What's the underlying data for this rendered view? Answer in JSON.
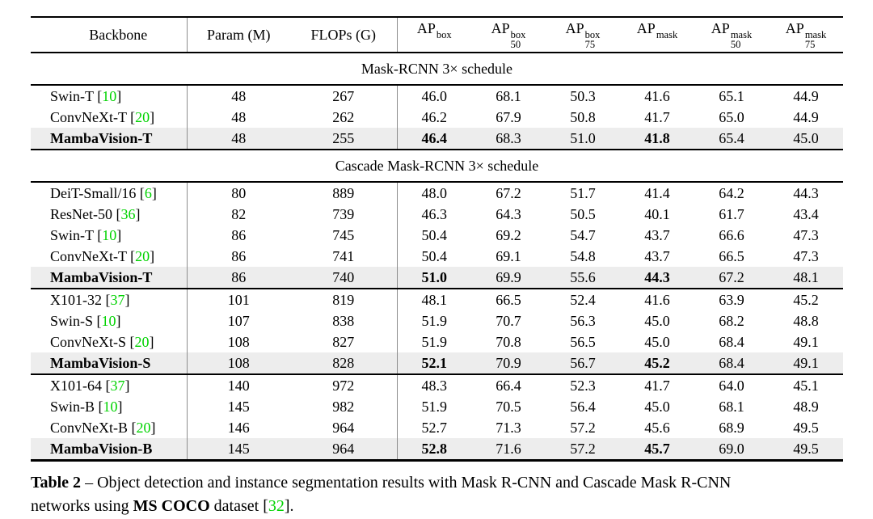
{
  "colors": {
    "citation_green": "#00d300",
    "highlight_row_bg": "#ededed",
    "rule_black": "#000000",
    "column_bar_gray": "#8c8c8c"
  },
  "table": {
    "columns": [
      {
        "label": "Backbone"
      },
      {
        "label": "Param (M)"
      },
      {
        "label": "FLOPs (G)"
      },
      {
        "base": "AP",
        "sup": "box",
        "sub": ""
      },
      {
        "base": "AP",
        "sup": "box",
        "sub": "50"
      },
      {
        "base": "AP",
        "sup": "box",
        "sub": "75"
      },
      {
        "base": "AP",
        "sup": "mask",
        "sub": ""
      },
      {
        "base": "AP",
        "sup": "mask",
        "sub": "50"
      },
      {
        "base": "AP",
        "sup": "mask",
        "sub": "75"
      }
    ],
    "sections": [
      {
        "title": "Mask-RCNN 3× schedule",
        "groups": [
          {
            "rows": [
              {
                "backbone": "Swin-T",
                "ref": "10",
                "highlight": false,
                "bold": [],
                "values": [
                  "48",
                  "267",
                  "46.0",
                  "68.1",
                  "50.3",
                  "41.6",
                  "65.1",
                  "44.9"
                ]
              },
              {
                "backbone": "ConvNeXt-T",
                "ref": "20",
                "highlight": false,
                "bold": [],
                "values": [
                  "48",
                  "262",
                  "46.2",
                  "67.9",
                  "50.8",
                  "41.7",
                  "65.0",
                  "44.9"
                ]
              },
              {
                "backbone": "MambaVision-T",
                "ref": null,
                "highlight": true,
                "bold": [
                  2,
                  5
                ],
                "values": [
                  "48",
                  "255",
                  "46.4",
                  "68.3",
                  "51.0",
                  "41.8",
                  "65.4",
                  "45.0"
                ]
              }
            ]
          }
        ]
      },
      {
        "title": "Cascade Mask-RCNN 3× schedule",
        "groups": [
          {
            "rows": [
              {
                "backbone": "DeiT-Small/16",
                "ref": "6",
                "highlight": false,
                "bold": [],
                "values": [
                  "80",
                  "889",
                  "48.0",
                  "67.2",
                  "51.7",
                  "41.4",
                  "64.2",
                  "44.3"
                ]
              },
              {
                "backbone": "ResNet-50",
                "ref": "36",
                "highlight": false,
                "bold": [],
                "values": [
                  "82",
                  "739",
                  "46.3",
                  "64.3",
                  "50.5",
                  "40.1",
                  "61.7",
                  "43.4"
                ]
              },
              {
                "backbone": "Swin-T",
                "ref": "10",
                "highlight": false,
                "bold": [],
                "values": [
                  "86",
                  "745",
                  "50.4",
                  "69.2",
                  "54.7",
                  "43.7",
                  "66.6",
                  "47.3"
                ]
              },
              {
                "backbone": "ConvNeXt-T",
                "ref": "20",
                "highlight": false,
                "bold": [],
                "values": [
                  "86",
                  "741",
                  "50.4",
                  "69.1",
                  "54.8",
                  "43.7",
                  "66.5",
                  "47.3"
                ]
              },
              {
                "backbone": "MambaVision-T",
                "ref": null,
                "highlight": true,
                "bold": [
                  2,
                  5
                ],
                "values": [
                  "86",
                  "740",
                  "51.0",
                  "69.9",
                  "55.6",
                  "44.3",
                  "67.2",
                  "48.1"
                ]
              }
            ]
          },
          {
            "rows": [
              {
                "backbone": "X101-32",
                "ref": "37",
                "highlight": false,
                "bold": [],
                "values": [
                  "101",
                  "819",
                  "48.1",
                  "66.5",
                  "52.4",
                  "41.6",
                  "63.9",
                  "45.2"
                ]
              },
              {
                "backbone": "Swin-S",
                "ref": "10",
                "highlight": false,
                "bold": [],
                "values": [
                  "107",
                  "838",
                  "51.9",
                  "70.7",
                  "56.3",
                  "45.0",
                  "68.2",
                  "48.8"
                ]
              },
              {
                "backbone": "ConvNeXt-S",
                "ref": "20",
                "highlight": false,
                "bold": [],
                "values": [
                  "108",
                  "827",
                  "51.9",
                  "70.8",
                  "56.5",
                  "45.0",
                  "68.4",
                  "49.1"
                ]
              },
              {
                "backbone": "MambaVision-S",
                "ref": null,
                "highlight": true,
                "bold": [
                  2,
                  5
                ],
                "values": [
                  "108",
                  "828",
                  "52.1",
                  "70.9",
                  "56.7",
                  "45.2",
                  "68.4",
                  "49.1"
                ]
              }
            ]
          },
          {
            "rows": [
              {
                "backbone": "X101-64",
                "ref": "37",
                "highlight": false,
                "bold": [],
                "values": [
                  "140",
                  "972",
                  "48.3",
                  "66.4",
                  "52.3",
                  "41.7",
                  "64.0",
                  "45.1"
                ]
              },
              {
                "backbone": "Swin-B",
                "ref": "10",
                "highlight": false,
                "bold": [],
                "values": [
                  "145",
                  "982",
                  "51.9",
                  "70.5",
                  "56.4",
                  "45.0",
                  "68.1",
                  "48.9"
                ]
              },
              {
                "backbone": "ConvNeXt-B",
                "ref": "20",
                "highlight": false,
                "bold": [],
                "values": [
                  "146",
                  "964",
                  "52.7",
                  "71.3",
                  "57.2",
                  "45.6",
                  "68.9",
                  "49.5"
                ]
              },
              {
                "backbone": "MambaVision-B",
                "ref": null,
                "highlight": true,
                "bold": [
                  2,
                  5
                ],
                "values": [
                  "145",
                  "964",
                  "52.8",
                  "71.6",
                  "57.2",
                  "45.7",
                  "69.0",
                  "49.5"
                ]
              }
            ]
          }
        ]
      }
    ]
  },
  "caption": {
    "segments": [
      {
        "text": "Table 2",
        "bold": true
      },
      {
        "text": " – Object detection and instance segmentation results with Mask R-CNN and Cascade Mask R-CNN"
      },
      {
        "br": true
      },
      {
        "text": "networks using "
      },
      {
        "text": "MS COCO",
        "bold": true
      },
      {
        "text": " dataset ["
      },
      {
        "text": "32",
        "green": true
      },
      {
        "text": "]."
      }
    ]
  }
}
